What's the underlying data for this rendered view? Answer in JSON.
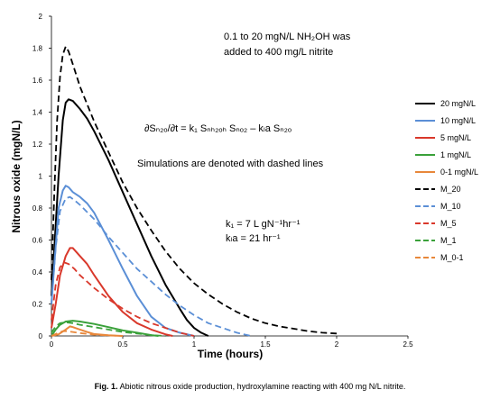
{
  "chart_data": {
    "type": "line",
    "xlabel": "Time (hours)",
    "ylabel": "Nitrous oxide (mgN/L)",
    "xlim": [
      0,
      2.5
    ],
    "ylim": [
      0,
      2
    ],
    "x_ticks": [
      "0",
      "0.5",
      "1",
      "1.5",
      "2",
      "2.5"
    ],
    "y_ticks": [
      "0",
      "0.2",
      "0.4",
      "0.6",
      "0.8",
      "1",
      "1.2",
      "1.4",
      "1.6",
      "1.8",
      "2"
    ],
    "grid": false,
    "legend_position": "right",
    "annotations": {
      "line1": "0.1 to 20  mgN/L NH₂OH was",
      "line2": "added to 400 mg/L nitrite",
      "equation": "∂Sₙ₂ₒ/∂t = k₁ Sₙₕ₂ₒₕ Sₙₒ₂ – kₗa Sₙ₂ₒ",
      "simulations_note": "Simulations are denoted with dashed lines",
      "k1": "k₁ = 7 L gN⁻¹hr⁻¹",
      "kla": "kₗa = 21 hr⁻¹"
    },
    "series": [
      {
        "name": "20 mgN/L",
        "color": "#000000",
        "dash": false,
        "x": [
          0,
          0.02,
          0.05,
          0.08,
          0.1,
          0.12,
          0.15,
          0.2,
          0.25,
          0.3,
          0.4,
          0.5,
          0.6,
          0.7,
          0.8,
          0.9,
          0.95,
          1.0,
          1.05,
          1.1
        ],
        "y": [
          0.25,
          0.55,
          1.0,
          1.35,
          1.46,
          1.48,
          1.47,
          1.42,
          1.36,
          1.28,
          1.1,
          0.9,
          0.7,
          0.5,
          0.32,
          0.17,
          0.1,
          0.05,
          0.02,
          0.0
        ]
      },
      {
        "name": "10 mgN/L",
        "color": "#5B8FD6",
        "dash": false,
        "x": [
          0,
          0.02,
          0.05,
          0.08,
          0.1,
          0.12,
          0.15,
          0.2,
          0.25,
          0.3,
          0.4,
          0.5,
          0.6,
          0.7,
          0.8,
          0.9,
          1.0
        ],
        "y": [
          0.2,
          0.45,
          0.8,
          0.91,
          0.94,
          0.93,
          0.9,
          0.87,
          0.83,
          0.77,
          0.6,
          0.42,
          0.25,
          0.12,
          0.05,
          0.02,
          0.0
        ]
      },
      {
        "name": "5 mgN/L",
        "color": "#D9382B",
        "dash": false,
        "x": [
          0,
          0.03,
          0.06,
          0.1,
          0.13,
          0.15,
          0.2,
          0.25,
          0.3,
          0.4,
          0.5,
          0.6,
          0.7,
          0.8,
          0.85
        ],
        "y": [
          0.05,
          0.2,
          0.38,
          0.5,
          0.55,
          0.55,
          0.5,
          0.45,
          0.38,
          0.25,
          0.15,
          0.08,
          0.04,
          0.01,
          0.0
        ]
      },
      {
        "name": "1 mgN/L",
        "color": "#3AA13A",
        "dash": false,
        "x": [
          0,
          0.03,
          0.06,
          0.1,
          0.15,
          0.2,
          0.3,
          0.4,
          0.5,
          0.6,
          0.7,
          0.75
        ],
        "y": [
          0.0,
          0.04,
          0.07,
          0.09,
          0.095,
          0.09,
          0.075,
          0.055,
          0.035,
          0.02,
          0.005,
          0.0
        ]
      },
      {
        "name": "0-1 mgN/L",
        "color": "#E8873A",
        "dash": false,
        "x": [
          0,
          0.05,
          0.1,
          0.13,
          0.15,
          0.2,
          0.25,
          0.3,
          0.4,
          0.5
        ],
        "y": [
          0.0,
          0.01,
          0.04,
          0.06,
          0.055,
          0.04,
          0.025,
          0.012,
          0.004,
          0.0
        ]
      },
      {
        "name": "M_20",
        "color": "#000000",
        "dash": true,
        "x": [
          0,
          0.02,
          0.04,
          0.06,
          0.08,
          0.1,
          0.12,
          0.15,
          0.2,
          0.3,
          0.4,
          0.5,
          0.6,
          0.7,
          0.8,
          0.9,
          1.0,
          1.1,
          1.2,
          1.3,
          1.4,
          1.5,
          1.6,
          1.7,
          1.8,
          1.9,
          2.0
        ],
        "y": [
          0.35,
          0.9,
          1.35,
          1.62,
          1.76,
          1.81,
          1.78,
          1.7,
          1.56,
          1.34,
          1.15,
          0.96,
          0.8,
          0.66,
          0.53,
          0.42,
          0.33,
          0.26,
          0.2,
          0.15,
          0.11,
          0.08,
          0.06,
          0.045,
          0.03,
          0.02,
          0.015
        ]
      },
      {
        "name": "M_10",
        "color": "#5B8FD6",
        "dash": true,
        "x": [
          0,
          0.03,
          0.06,
          0.1,
          0.13,
          0.16,
          0.2,
          0.3,
          0.4,
          0.5,
          0.6,
          0.7,
          0.8,
          0.9,
          1.0,
          1.1,
          1.2,
          1.3,
          1.4
        ],
        "y": [
          0.2,
          0.55,
          0.78,
          0.86,
          0.87,
          0.85,
          0.82,
          0.73,
          0.62,
          0.52,
          0.42,
          0.34,
          0.26,
          0.19,
          0.13,
          0.08,
          0.05,
          0.02,
          0.0
        ]
      },
      {
        "name": "M_5",
        "color": "#D9382B",
        "dash": true,
        "x": [
          0,
          0.03,
          0.06,
          0.09,
          0.12,
          0.16,
          0.2,
          0.3,
          0.4,
          0.5,
          0.6,
          0.7,
          0.8,
          0.9,
          1.0
        ],
        "y": [
          0.1,
          0.32,
          0.43,
          0.46,
          0.45,
          0.42,
          0.38,
          0.3,
          0.23,
          0.17,
          0.12,
          0.08,
          0.05,
          0.02,
          0.0
        ]
      },
      {
        "name": "M_1",
        "color": "#3AA13A",
        "dash": true,
        "x": [
          0,
          0.03,
          0.06,
          0.1,
          0.15,
          0.2,
          0.3,
          0.4,
          0.5,
          0.6,
          0.7,
          0.8
        ],
        "y": [
          0.02,
          0.06,
          0.08,
          0.085,
          0.08,
          0.07,
          0.055,
          0.04,
          0.025,
          0.015,
          0.005,
          0.0
        ]
      },
      {
        "name": "M_0-1",
        "color": "#E8873A",
        "dash": true,
        "x": [
          0,
          0.05,
          0.08,
          0.1,
          0.15,
          0.2,
          0.3,
          0.4,
          0.5
        ],
        "y": [
          0.0,
          0.02,
          0.03,
          0.03,
          0.025,
          0.018,
          0.008,
          0.003,
          0.0
        ]
      }
    ]
  },
  "caption": {
    "label": "Fig. 1.",
    "text": "Abiotic nitrous oxide production, hydroxylamine reacting with 400 mg N/L nitrite."
  }
}
